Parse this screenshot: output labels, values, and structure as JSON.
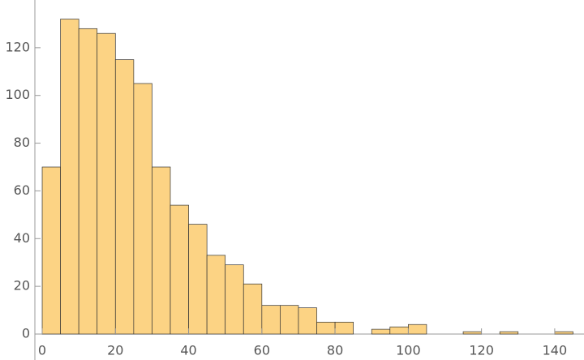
{
  "chart_data": {
    "type": "histogram",
    "bins": [
      0,
      5,
      10,
      15,
      20,
      25,
      30,
      35,
      40,
      45,
      50,
      55,
      60,
      65,
      70,
      75,
      80,
      85,
      90,
      95,
      100,
      105,
      110,
      115,
      120,
      125,
      130,
      135,
      140,
      145
    ],
    "values": [
      70,
      132,
      128,
      126,
      115,
      105,
      70,
      54,
      46,
      33,
      29,
      21,
      12,
      12,
      11,
      5,
      5,
      0,
      2,
      3,
      4,
      0,
      0,
      1,
      0,
      1,
      0,
      0,
      1
    ],
    "color": "#fcd384",
    "xlim": [
      -2,
      148
    ],
    "xticks": [
      0,
      20,
      40,
      60,
      80,
      100,
      120,
      140
    ],
    "ylim": [
      0,
      140
    ],
    "yticks": [
      0,
      20,
      40,
      60,
      80,
      100,
      120
    ]
  }
}
